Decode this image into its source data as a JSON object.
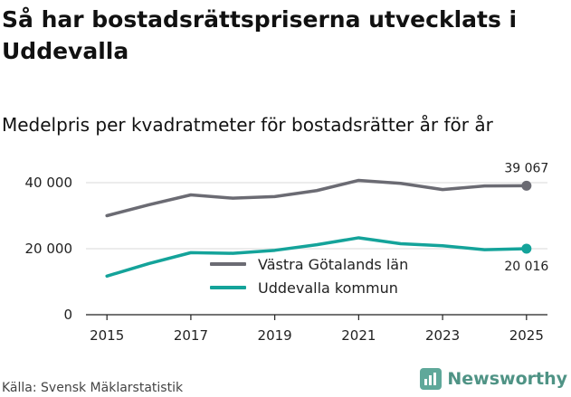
{
  "title": "Så har bostadsrättspriserna utvecklats i Uddevalla",
  "subtitle": "Medelpris per kvadratmeter för bostadsrätter år för år",
  "source": "Källa: Svensk Mäklarstatistik",
  "brand": "Newsworthy",
  "colors": {
    "series_1": "#6b6b73",
    "series_2": "#14a39a",
    "gridline": "#e6e6e6",
    "brand": "#4f9385"
  },
  "chart_data": {
    "type": "line",
    "x": [
      2015,
      2016,
      2017,
      2018,
      2019,
      2020,
      2021,
      2022,
      2023,
      2024,
      2025
    ],
    "x_tick_labels": [
      "2015",
      "2017",
      "2019",
      "2021",
      "2023",
      "2025"
    ],
    "y_tick_labels": [
      "0",
      "20 000",
      "40 000"
    ],
    "ylim": [
      0,
      40000
    ],
    "xlabel": "",
    "ylabel": "",
    "grid": true,
    "legend_position": "center",
    "series": [
      {
        "name": "Västra Götalands län",
        "values": [
          30000,
          33300,
          36300,
          35300,
          35800,
          37600,
          40700,
          39800,
          37900,
          39000,
          39067
        ],
        "end_label": "39 067"
      },
      {
        "name": "Uddevalla kommun",
        "values": [
          11700,
          15500,
          18800,
          18600,
          19500,
          21200,
          23300,
          21500,
          20900,
          19700,
          20016
        ],
        "end_label": "20 016"
      }
    ]
  }
}
